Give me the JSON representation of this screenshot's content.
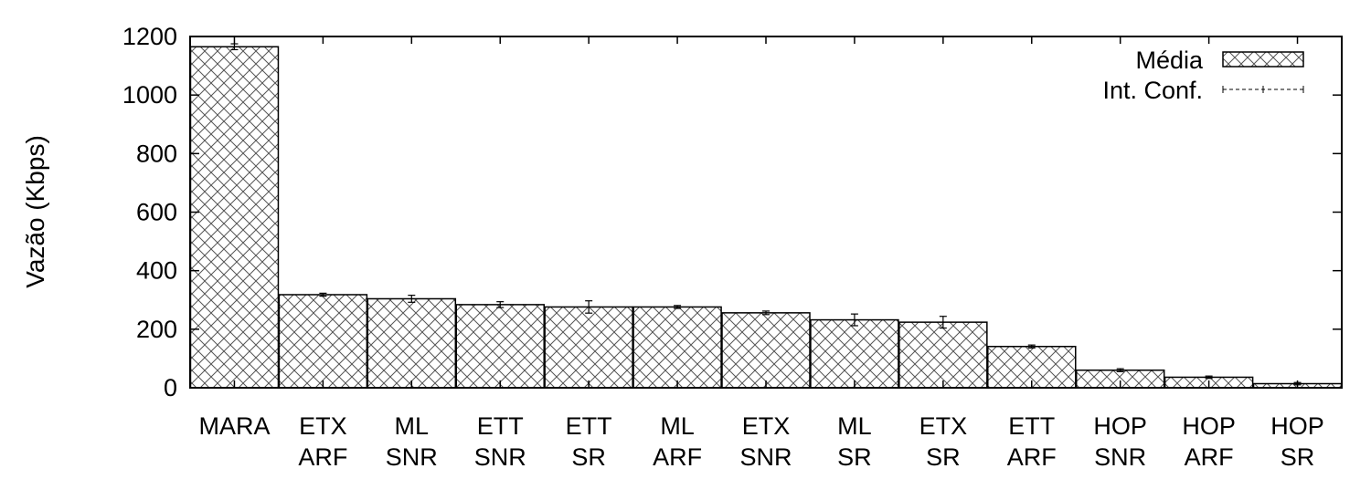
{
  "chart_data": {
    "type": "bar",
    "ylabel": "Vazão (Kbps)",
    "xlabel": "",
    "ylim": [
      0,
      1200
    ],
    "yticks": [
      0,
      200,
      400,
      600,
      800,
      1000,
      1200
    ],
    "grid": false,
    "legend_position": "top-right",
    "categories": [
      [
        "MARA"
      ],
      [
        "ETX",
        "ARF"
      ],
      [
        "ML",
        "SNR"
      ],
      [
        "ETT",
        "SNR"
      ],
      [
        "ETT",
        "SR"
      ],
      [
        "ML",
        "ARF"
      ],
      [
        "ETX",
        "SNR"
      ],
      [
        "ML",
        "SR"
      ],
      [
        "ETX",
        "SR"
      ],
      [
        "ETT",
        "ARF"
      ],
      [
        "HOP",
        "SNR"
      ],
      [
        "HOP",
        "ARF"
      ],
      [
        "HOP",
        "SR"
      ]
    ],
    "series": [
      {
        "name": "Média",
        "values": [
          1165,
          318,
          304,
          284,
          276,
          276,
          256,
          232,
          224,
          141,
          60,
          36,
          14
        ]
      }
    ],
    "confidence_interval": {
      "name": "Int. Conf.",
      "lower": [
        1155,
        313,
        292,
        274,
        255,
        271,
        250,
        212,
        204,
        136,
        55,
        32,
        10
      ],
      "upper": [
        1175,
        323,
        316,
        294,
        297,
        281,
        262,
        252,
        244,
        146,
        65,
        40,
        18
      ]
    },
    "colors": {
      "bar_fill": "#ffffff",
      "hatch": "#555555",
      "frame": "#000000"
    }
  }
}
